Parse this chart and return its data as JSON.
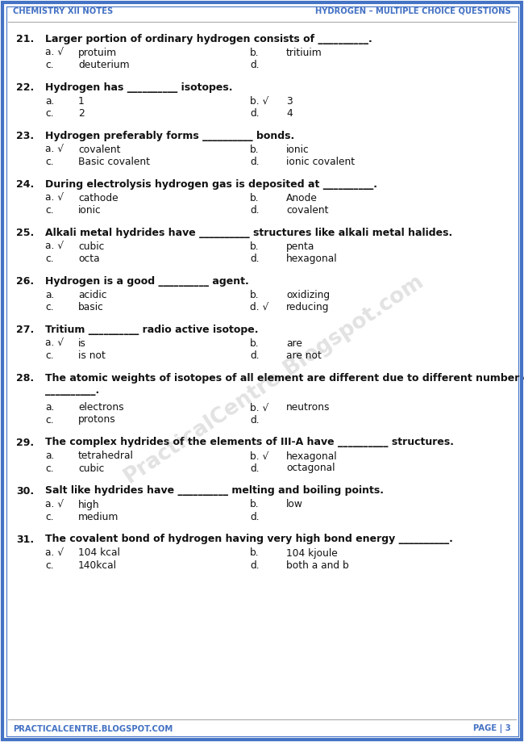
{
  "header_left": "Chemistry XII Notes",
  "header_right": "Hydrogen – Multiple Choice Questions",
  "footer_left": "PracticalCentre.Blogspot.com",
  "footer_right": "Page | 3",
  "border_color": "#4472C4",
  "header_color": "#4472C4",
  "text_color": "#111111",
  "bg_color": "#FFFFFF",
  "watermark_text": "PracticalCentre.Blogspot.com",
  "questions": [
    {
      "num": "21.",
      "question": "Larger portion of ordinary hydrogen consists of __________.",
      "extra_blank": false,
      "options": [
        {
          "label": "a. √",
          "text": "protuim",
          "row": 0,
          "col": 0
        },
        {
          "label": "b.",
          "text": "tritiuim",
          "row": 0,
          "col": 1
        },
        {
          "label": "c.",
          "text": "deuterium",
          "row": 1,
          "col": 0
        },
        {
          "label": "d.",
          "text": "",
          "row": 1,
          "col": 1
        }
      ]
    },
    {
      "num": "22.",
      "question": "Hydrogen has __________ isotopes.",
      "extra_blank": false,
      "options": [
        {
          "label": "a.",
          "text": "1",
          "row": 0,
          "col": 0
        },
        {
          "label": "b. √",
          "text": "3",
          "row": 0,
          "col": 1
        },
        {
          "label": "c.",
          "text": "2",
          "row": 1,
          "col": 0
        },
        {
          "label": "d.",
          "text": "4",
          "row": 1,
          "col": 1
        }
      ]
    },
    {
      "num": "23.",
      "question": "Hydrogen preferably forms __________ bonds.",
      "extra_blank": false,
      "options": [
        {
          "label": "a. √",
          "text": "covalent",
          "row": 0,
          "col": 0
        },
        {
          "label": "b.",
          "text": "ionic",
          "row": 0,
          "col": 1
        },
        {
          "label": "c.",
          "text": "Basic covalent",
          "row": 1,
          "col": 0
        },
        {
          "label": "d.",
          "text": "ionic covalent",
          "row": 1,
          "col": 1
        }
      ]
    },
    {
      "num": "24.",
      "question": "During electrolysis hydrogen gas is deposited at __________.",
      "extra_blank": false,
      "options": [
        {
          "label": "a. √",
          "text": "cathode",
          "row": 0,
          "col": 0
        },
        {
          "label": "b.",
          "text": "Anode",
          "row": 0,
          "col": 1
        },
        {
          "label": "c.",
          "text": "ionic",
          "row": 1,
          "col": 0
        },
        {
          "label": "d.",
          "text": "covalent",
          "row": 1,
          "col": 1
        }
      ]
    },
    {
      "num": "25.",
      "question": "Alkali metal hydrides have __________ structures like alkali metal halides.",
      "extra_blank": false,
      "options": [
        {
          "label": "a. √",
          "text": "cubic",
          "row": 0,
          "col": 0
        },
        {
          "label": "b.",
          "text": "penta",
          "row": 0,
          "col": 1
        },
        {
          "label": "c.",
          "text": "octa",
          "row": 1,
          "col": 0
        },
        {
          "label": "d.",
          "text": "hexagonal",
          "row": 1,
          "col": 1
        }
      ]
    },
    {
      "num": "26.",
      "question": "Hydrogen is a good __________ agent.",
      "extra_blank": false,
      "options": [
        {
          "label": "a.",
          "text": "acidic",
          "row": 0,
          "col": 0
        },
        {
          "label": "b.",
          "text": "oxidizing",
          "row": 0,
          "col": 1
        },
        {
          "label": "c.",
          "text": "basic",
          "row": 1,
          "col": 0
        },
        {
          "label": "d. √",
          "text": "reducing",
          "row": 1,
          "col": 1
        }
      ]
    },
    {
      "num": "27.",
      "question": "Tritium __________ radio active isotope.",
      "extra_blank": false,
      "options": [
        {
          "label": "a. √",
          "text": "is",
          "row": 0,
          "col": 0
        },
        {
          "label": "b.",
          "text": "are",
          "row": 0,
          "col": 1
        },
        {
          "label": "c.",
          "text": "is not",
          "row": 1,
          "col": 0
        },
        {
          "label": "d.",
          "text": "are not",
          "row": 1,
          "col": 1
        }
      ]
    },
    {
      "num": "28.",
      "question": "The atomic weights of isotopes of all element are different due to different number of",
      "question_line2": "__________.",
      "extra_blank": true,
      "options": [
        {
          "label": "a.",
          "text": "electrons",
          "row": 0,
          "col": 0
        },
        {
          "label": "b. √",
          "text": "neutrons",
          "row": 0,
          "col": 1
        },
        {
          "label": "c.",
          "text": "protons",
          "row": 1,
          "col": 0
        },
        {
          "label": "d.",
          "text": "",
          "row": 1,
          "col": 1
        }
      ]
    },
    {
      "num": "29.",
      "question": "The complex hydrides of the elements of III-A have __________ structures.",
      "extra_blank": false,
      "options": [
        {
          "label": "a.",
          "text": "tetrahedral",
          "row": 0,
          "col": 0
        },
        {
          "label": "b. √",
          "text": "hexagonal",
          "row": 0,
          "col": 1
        },
        {
          "label": "c.",
          "text": "cubic",
          "row": 1,
          "col": 0
        },
        {
          "label": "d.",
          "text": "octagonal",
          "row": 1,
          "col": 1
        }
      ]
    },
    {
      "num": "30.",
      "question": "Salt like hydrides have __________ melting and boiling points.",
      "extra_blank": false,
      "options": [
        {
          "label": "a. √",
          "text": "high",
          "row": 0,
          "col": 0
        },
        {
          "label": "b.",
          "text": "low",
          "row": 0,
          "col": 1
        },
        {
          "label": "c.",
          "text": "medium",
          "row": 1,
          "col": 0
        },
        {
          "label": "d.",
          "text": "",
          "row": 1,
          "col": 1
        }
      ]
    },
    {
      "num": "31.",
      "question": "The covalent bond of hydrogen having very high bond energy __________.",
      "extra_blank": false,
      "options": [
        {
          "label": "a. √",
          "text": "104 kcal",
          "row": 0,
          "col": 0
        },
        {
          "label": "b.",
          "text": "104 kjoule",
          "row": 0,
          "col": 1
        },
        {
          "label": "c.",
          "text": "140kcal",
          "row": 1,
          "col": 0
        },
        {
          "label": "d.",
          "text": "both a and b",
          "row": 1,
          "col": 1
        }
      ]
    }
  ]
}
